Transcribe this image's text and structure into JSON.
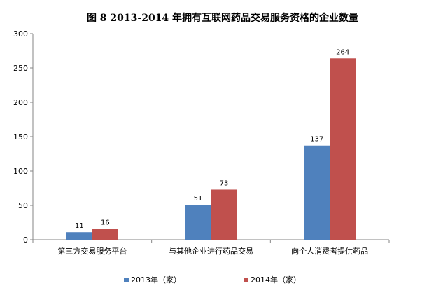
{
  "chart_data": {
    "type": "bar",
    "title": "图 8   2013-2014 年拥有互联网药品交易服务资格的企业数量",
    "xlabel": "",
    "ylabel": "",
    "categories": [
      "第三方交易服务平台",
      "与其他企业进行药品交易",
      "向个人消费者提供药品"
    ],
    "series": [
      {
        "name": "2013年（家）",
        "values": [
          11,
          51,
          137
        ],
        "color": "#4f81bd"
      },
      {
        "name": "2014年（家）",
        "values": [
          16,
          73,
          264
        ],
        "color": "#c0504d"
      }
    ],
    "ylim": [
      0,
      300
    ],
    "yticks": [
      0,
      50,
      100,
      150,
      200,
      250,
      300
    ],
    "grid": false,
    "legend_position": "bottom",
    "data_labels": true
  }
}
